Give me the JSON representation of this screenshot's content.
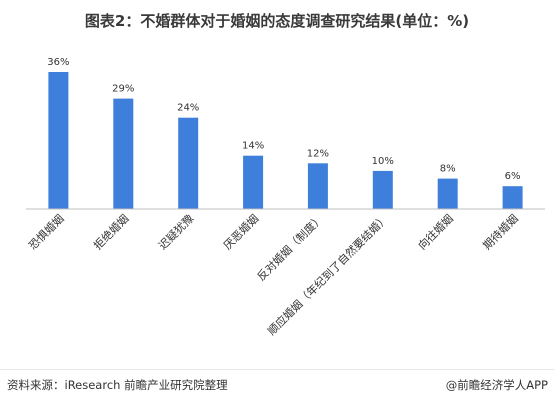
{
  "chart_data": {
    "type": "bar",
    "title": "图表2：不婚群体对于婚姻的态度调查研究结果(单位：%)",
    "categories": [
      "恐惧婚姻",
      "拒绝婚姻",
      "迟疑犹豫",
      "厌恶婚姻",
      "反对婚姻（制度）",
      "顺应婚姻（年纪到了自然要结婚）",
      "向往婚姻",
      "期待婚姻"
    ],
    "values": [
      36,
      29,
      24,
      14,
      12,
      10,
      8,
      6
    ],
    "value_labels": [
      "36%",
      "29%",
      "24%",
      "14%",
      "12%",
      "10%",
      "8%",
      "6%"
    ],
    "ylim": [
      0,
      40
    ],
    "grid": false,
    "bar_color": "#3e7fdb"
  },
  "footer": {
    "source": "资料来源：iResearch 前瞻产业研究院整理",
    "brand": "@前瞻经济学人APP"
  }
}
